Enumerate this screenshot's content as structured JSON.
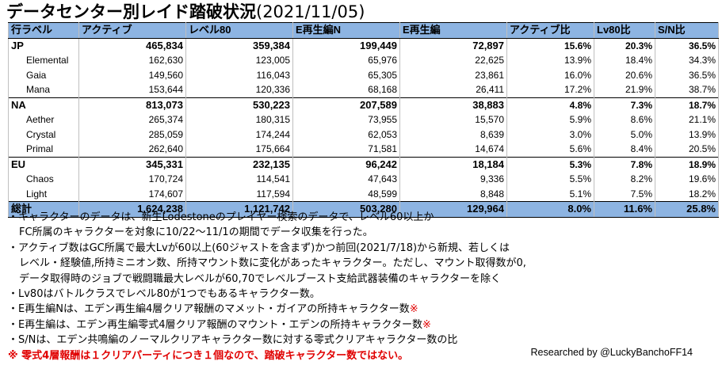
{
  "title": "データセンター別レイド踏破状況",
  "date": "(2021/11/05)",
  "columns": [
    "行ラベル",
    "アクティブ",
    "レベル80",
    "E再生編N",
    "E再生編",
    "アクティブ比",
    "Lv80比",
    "S/N比"
  ],
  "rows": [
    {
      "type": "grp",
      "cells": [
        "JP",
        "465,834",
        "359,384",
        "199,449",
        "72,897",
        "15.6%",
        "20.3%",
        "36.5%"
      ]
    },
    {
      "type": "sub",
      "cells": [
        "Elemental",
        "162,630",
        "123,005",
        "65,976",
        "22,625",
        "13.9%",
        "18.4%",
        "34.3%"
      ]
    },
    {
      "type": "sub",
      "cells": [
        "Gaia",
        "149,560",
        "116,043",
        "65,305",
        "23,861",
        "16.0%",
        "20.6%",
        "36.5%"
      ]
    },
    {
      "type": "sub",
      "cells": [
        "Mana",
        "153,644",
        "120,336",
        "68,168",
        "26,411",
        "17.2%",
        "21.9%",
        "38.7%"
      ]
    },
    {
      "type": "grp",
      "cells": [
        "NA",
        "813,073",
        "530,223",
        "207,589",
        "38,883",
        "4.8%",
        "7.3%",
        "18.7%"
      ]
    },
    {
      "type": "sub",
      "cells": [
        "Aether",
        "265,374",
        "180,315",
        "73,955",
        "15,570",
        "5.9%",
        "8.6%",
        "21.1%"
      ]
    },
    {
      "type": "sub",
      "cells": [
        "Crystal",
        "285,059",
        "174,244",
        "62,053",
        "8,639",
        "3.0%",
        "5.0%",
        "13.9%"
      ]
    },
    {
      "type": "sub",
      "cells": [
        "Primal",
        "262,640",
        "175,664",
        "71,581",
        "14,674",
        "5.6%",
        "8.4%",
        "20.5%"
      ]
    },
    {
      "type": "grp",
      "cells": [
        "EU",
        "345,331",
        "232,135",
        "96,242",
        "18,184",
        "5.3%",
        "7.8%",
        "18.9%"
      ]
    },
    {
      "type": "sub",
      "cells": [
        "Chaos",
        "170,724",
        "114,541",
        "47,643",
        "9,336",
        "5.5%",
        "8.2%",
        "19.6%"
      ]
    },
    {
      "type": "sub",
      "cells": [
        "Light",
        "174,607",
        "117,594",
        "48,599",
        "8,848",
        "5.1%",
        "7.5%",
        "18.2%"
      ]
    },
    {
      "type": "tot",
      "cells": [
        "総計",
        "1,624,238",
        "1,121,742",
        "503,280",
        "129,964",
        "8.0%",
        "11.6%",
        "25.8%"
      ]
    }
  ],
  "notes": [
    {
      "text": "・キャラクターのデータは、新生Lodestoneのプレイヤー検索のデータで、レベル60以上か",
      "cont": false,
      "mark": ""
    },
    {
      "text": "FC所属のキャラクターを対象に10/22～11/1の期間でデータ収集を行った。",
      "cont": true,
      "mark": ""
    },
    {
      "text": "・アクティブ数はGC所属で最大Lvが60以上(60ジャストを含まず)かつ前回(2021/7/18)から新規、若しくは",
      "cont": false,
      "mark": ""
    },
    {
      "text": "レベル・経験値,所持ミニオン数、所持マウント数に変化があったキャラクター。ただし、マウント取得数が0,",
      "cont": true,
      "mark": ""
    },
    {
      "text": "データ取得時のジョブで戦闘職最大レベルが60,70でレベルブースト支給武器装備のキャラクターを除く",
      "cont": true,
      "mark": ""
    },
    {
      "text": "・Lv80はバトルクラスでレベル80が1つでもあるキャラクター数。",
      "cont": false,
      "mark": ""
    },
    {
      "text": "・E再生編Nは、エデン再生編4層クリア報酬のマメット・ガイアの所持キャラクター数",
      "cont": false,
      "mark": "※"
    },
    {
      "text": "・E再生編は、エデン再生編零式4層クリア報酬のマウント・エデンの所持キャラクター数",
      "cont": false,
      "mark": "※"
    },
    {
      "text": "・S/Nは、エデン共鳴編のノーマルクリアキャラクター数に対する零式クリアキャラクター数の比",
      "cont": false,
      "mark": ""
    }
  ],
  "warning": "※ 零式4層報酬は１クリアパーティにつき１個なので、踏破キャラクター数ではない。",
  "credit": "Researched by @LuckyBanchoFF14",
  "colors": {
    "header_bg": "#8db4e2",
    "warning": "#e00000"
  }
}
